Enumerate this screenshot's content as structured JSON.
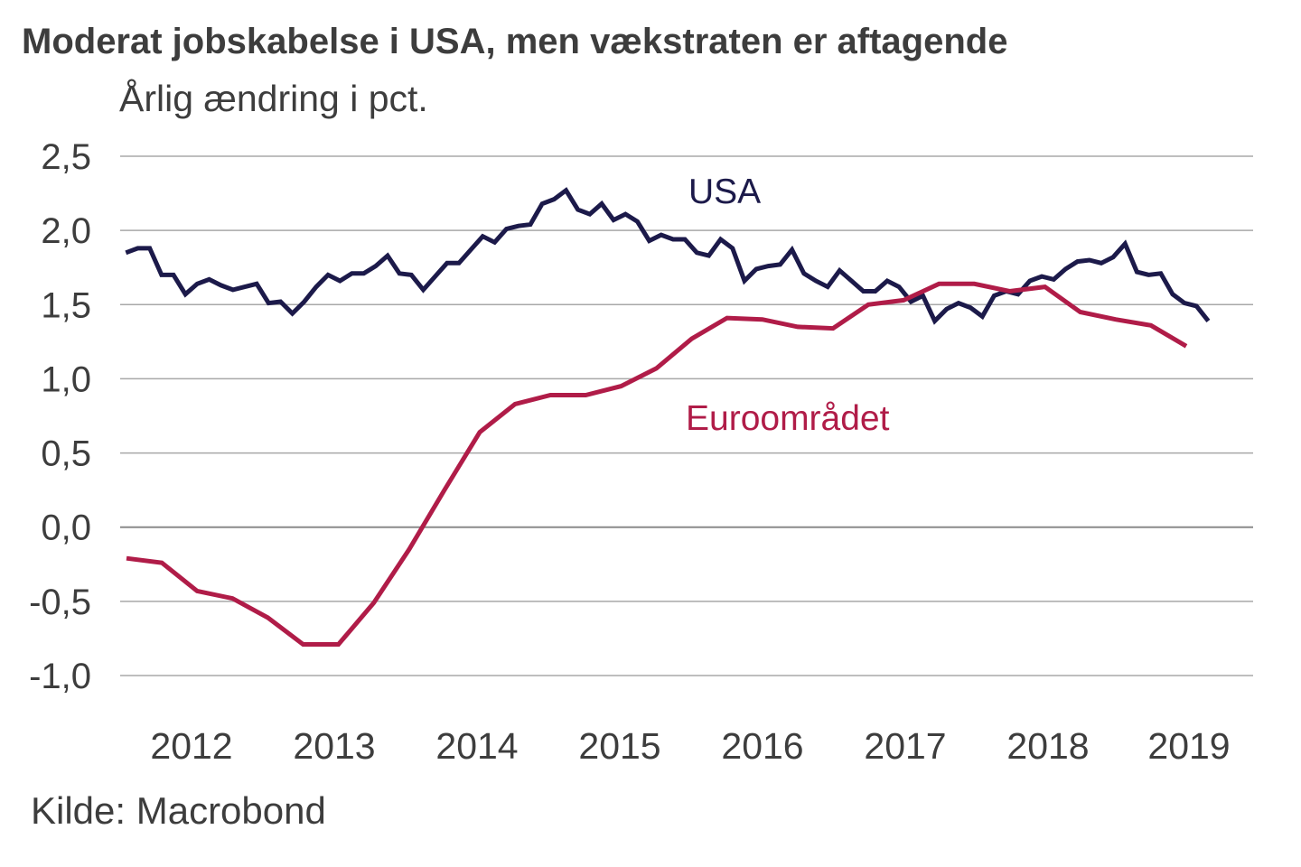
{
  "chart_data": {
    "type": "line",
    "title": "Moderat jobskabelse i USA, men vækstraten er aftagende",
    "subtitle": "Årlig ændring i pct.",
    "source": "Kilde: Macrobond",
    "xlabel": "",
    "ylabel": "Årlig ændring i pct.",
    "ylim": [
      -1.0,
      2.5
    ],
    "yticks": [
      2.5,
      2.0,
      1.5,
      1.0,
      0.5,
      0.0,
      -0.5,
      -1.0
    ],
    "ytick_labels": [
      "2,5",
      "2,0",
      "1,5",
      "1,0",
      "0,5",
      "0,0",
      "-0,5",
      "-1,0"
    ],
    "xlim": [
      2011.96,
      2019.86
    ],
    "xticks": [
      2012,
      2013,
      2014,
      2015,
      2016,
      2017,
      2018,
      2019
    ],
    "xtick_labels": [
      "2012",
      "2013",
      "2014",
      "2015",
      "2016",
      "2017",
      "2018",
      "2019"
    ],
    "grid": true,
    "legend": "inline-labels",
    "series": [
      {
        "name": "USA",
        "label": "USA",
        "color": "#1c1a4a",
        "frequency": "monthly",
        "start": 2012.04,
        "step": 0.08333,
        "values": [
          1.85,
          1.88,
          1.88,
          1.7,
          1.7,
          1.57,
          1.64,
          1.67,
          1.63,
          1.6,
          1.62,
          1.64,
          1.51,
          1.52,
          1.44,
          1.52,
          1.62,
          1.7,
          1.66,
          1.71,
          1.71,
          1.76,
          1.83,
          1.71,
          1.7,
          1.6,
          1.69,
          1.78,
          1.78,
          1.87,
          1.96,
          1.92,
          2.01,
          2.03,
          2.04,
          2.18,
          2.21,
          2.27,
          2.14,
          2.11,
          2.18,
          2.07,
          2.11,
          2.06,
          1.93,
          1.97,
          1.94,
          1.94,
          1.85,
          1.83,
          1.94,
          1.88,
          1.66,
          1.74,
          1.76,
          1.77,
          1.87,
          1.71,
          1.66,
          1.62,
          1.73,
          1.66,
          1.59,
          1.59,
          1.66,
          1.62,
          1.52,
          1.56,
          1.39,
          1.47,
          1.51,
          1.48,
          1.42,
          1.56,
          1.59,
          1.57,
          1.66,
          1.69,
          1.67,
          1.74,
          1.79,
          1.8,
          1.78,
          1.82,
          1.91,
          1.72,
          1.7,
          1.71,
          1.57,
          1.51,
          1.49,
          1.39
        ]
      },
      {
        "name": "Euroområdet",
        "label": "Euroområdet",
        "color": "#b01c48",
        "frequency": "quarterly",
        "start": 2012.04,
        "step": 0.25,
        "values": [
          -0.21,
          -0.24,
          -0.43,
          -0.48,
          -0.61,
          -0.79,
          -0.79,
          -0.51,
          -0.15,
          0.25,
          0.64,
          0.83,
          0.89,
          0.89,
          0.95,
          1.07,
          1.27,
          1.41,
          1.4,
          1.35,
          1.34,
          1.5,
          1.53,
          1.64,
          1.64,
          1.59,
          1.62,
          1.45,
          1.4,
          1.36,
          1.22
        ]
      }
    ]
  }
}
